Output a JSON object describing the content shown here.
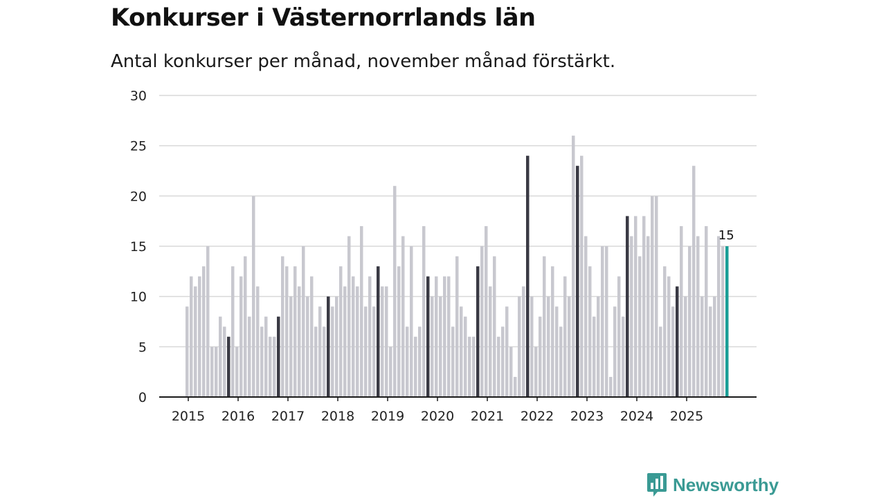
{
  "header": {
    "title": "Konkurser i Västernorrlands län",
    "subtitle": "Antal konkurser per månad, november månad förstärkt."
  },
  "brand": {
    "name": "Newsworthy"
  },
  "colors": {
    "normal_bar": "#c8c8cf",
    "highlight_bar": "#3a3a44",
    "latest_bar": "#1a9e96",
    "grid": "#d9d9d9",
    "axis": "#1a1a1a",
    "brand": "#3a9a94"
  },
  "chart_data": {
    "type": "bar",
    "title": "Konkurser i Västernorrlands län",
    "subtitle": "Antal konkurser per månad, november månad förstärkt.",
    "xlabel": "",
    "ylabel": "",
    "ylim": [
      0,
      30
    ],
    "y_ticks": [
      0,
      5,
      10,
      15,
      20,
      25,
      30
    ],
    "x_tick_labels": [
      "2015",
      "2016",
      "2017",
      "2018",
      "2019",
      "2020",
      "2021",
      "2022",
      "2023",
      "2024",
      "2025"
    ],
    "start": "2015-01",
    "highlight_month": "november",
    "grid": true,
    "annotations": [
      {
        "label": "15",
        "target": "2025-11"
      }
    ],
    "series": [
      {
        "name": "2015",
        "values": [
          9,
          12,
          11,
          12,
          13,
          15,
          5,
          5,
          8,
          7,
          6,
          13
        ]
      },
      {
        "name": "2016",
        "values": [
          5,
          12,
          14,
          8,
          20,
          11,
          7,
          8,
          6,
          6,
          8,
          14
        ]
      },
      {
        "name": "2017",
        "values": [
          13,
          10,
          13,
          11,
          15,
          10,
          12,
          7,
          9,
          7,
          10,
          9
        ]
      },
      {
        "name": "2018",
        "values": [
          10,
          13,
          11,
          16,
          12,
          11,
          17,
          9,
          12,
          9,
          13,
          11
        ]
      },
      {
        "name": "2019",
        "values": [
          11,
          5,
          21,
          13,
          16,
          7,
          15,
          6,
          7,
          17,
          12,
          10
        ]
      },
      {
        "name": "2020",
        "values": [
          12,
          10,
          12,
          12,
          7,
          14,
          9,
          8,
          6,
          6,
          13,
          15
        ]
      },
      {
        "name": "2021",
        "values": [
          17,
          11,
          14,
          6,
          7,
          9,
          5,
          2,
          10,
          11,
          24,
          10
        ]
      },
      {
        "name": "2022",
        "values": [
          5,
          8,
          14,
          10,
          13,
          9,
          7,
          12,
          10,
          26,
          23,
          24
        ]
      },
      {
        "name": "2023",
        "values": [
          16,
          13,
          8,
          10,
          15,
          15,
          2,
          9,
          12,
          8,
          18,
          16
        ]
      },
      {
        "name": "2024",
        "values": [
          18,
          14,
          18,
          16,
          20,
          20,
          7,
          13,
          12,
          9,
          11,
          17
        ]
      },
      {
        "name": "2025",
        "values": [
          10,
          15,
          23,
          16,
          10,
          17,
          9,
          10,
          16,
          15,
          15
        ]
      }
    ]
  }
}
